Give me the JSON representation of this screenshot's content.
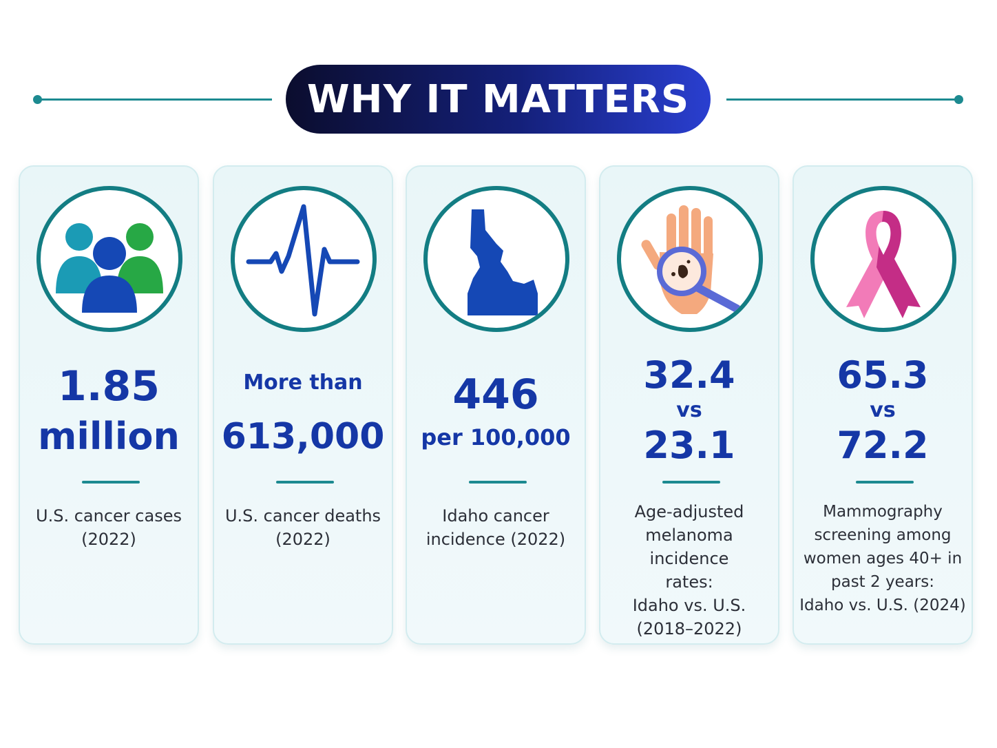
{
  "header": {
    "title": "WHY IT MATTERS"
  },
  "cards": [
    {
      "icon": "people-group-icon",
      "stat_line1": "1.85",
      "stat_line2": "million",
      "caption_lines": [
        "U.S. cancer cases",
        "(2022)"
      ]
    },
    {
      "icon": "heartbeat-icon",
      "stat_prefix": "More than",
      "stat_value": "613,000",
      "caption_lines": [
        "U.S. cancer deaths",
        "(2022)"
      ]
    },
    {
      "icon": "idaho-map-icon",
      "stat_value": "446",
      "stat_unit": "per 100,000",
      "caption_lines": [
        "Idaho cancer",
        "incidence (2022)"
      ]
    },
    {
      "icon": "hand-magnifier-icon",
      "stat_a": "32.4",
      "stat_vs": "vs",
      "stat_b": "23.1",
      "caption_lines": [
        "Age-adjusted",
        "melanoma incidence",
        "rates:",
        "Idaho vs. U.S.",
        "(2018–2022)"
      ]
    },
    {
      "icon": "pink-ribbon-icon",
      "stat_a": "65.3",
      "stat_vs": "vs",
      "stat_b": "72.2",
      "caption_lines": [
        "Mammography",
        "screening among",
        "women ages 40+ in",
        "past 2 years:",
        "Idaho vs. U.S. (2024)"
      ]
    }
  ],
  "colors": {
    "accent_teal": "#1c8a90",
    "stat_blue": "#1537a6",
    "title_gradient_start": "#0b0d2e",
    "title_gradient_end": "#2a3fd0",
    "ribbon_pink": "#e0559a"
  }
}
